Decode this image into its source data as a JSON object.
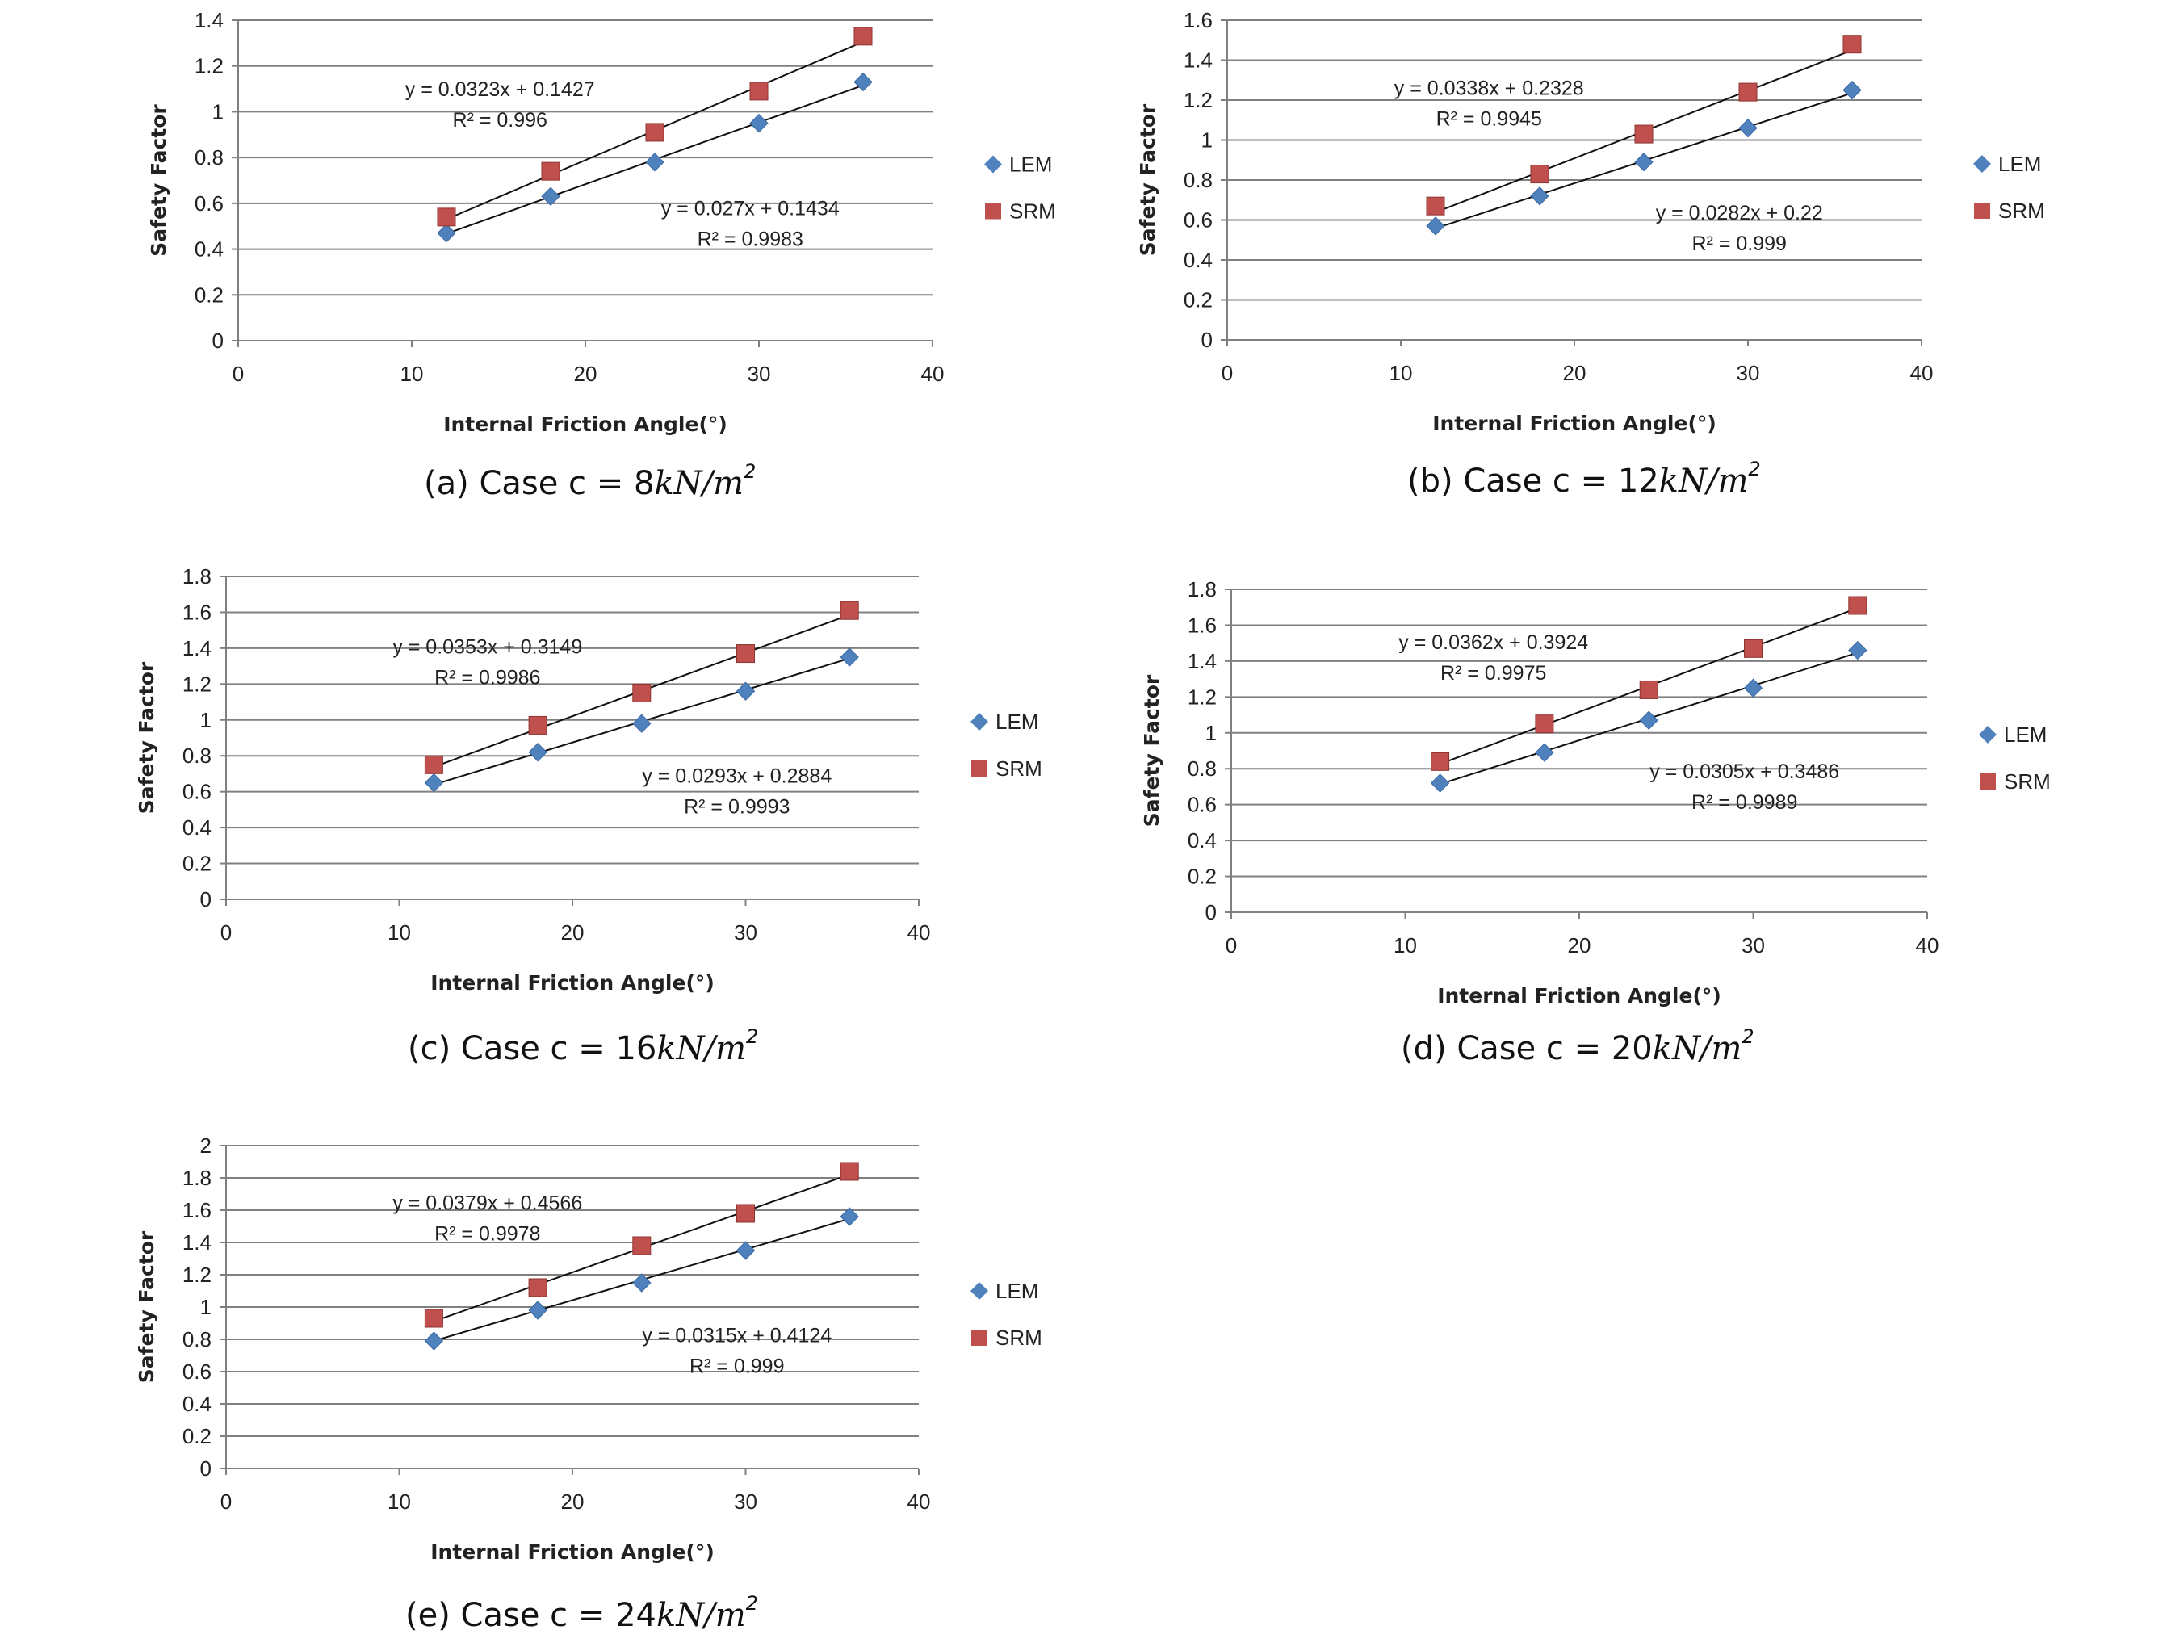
{
  "figure": {
    "legend": {
      "lem": "LEM",
      "srm": "SRM"
    },
    "colors": {
      "lem": "#4f81bd",
      "srm": "#c0504d",
      "grid": "#808080",
      "axis": "#808080",
      "fit": "#111111"
    }
  },
  "chart_data": [
    {
      "id": "a",
      "type": "scatter",
      "title": "",
      "caption_prefix": "(a) Case c = ",
      "caption_value": "8",
      "caption_unit": "kN/m",
      "caption_exp": "2",
      "xlabel": "Internal Friction Angle(°)",
      "ylabel": "Safety Factor",
      "xlim": [
        0,
        40
      ],
      "ylim": [
        0,
        1.4
      ],
      "xticks": [
        "0",
        "10",
        "20",
        "30",
        "40"
      ],
      "yticks": [
        "0",
        "0.2",
        "0.4",
        "0.6",
        "0.8",
        "1",
        "1.2",
        "1.4"
      ],
      "series": [
        {
          "name": "LEM",
          "x": [
            12,
            18,
            24,
            30,
            36
          ],
          "y": [
            0.47,
            0.63,
            0.78,
            0.95,
            1.13
          ],
          "fit": {
            "slope": 0.027,
            "intercept": 0.1434,
            "eq": "y = 0.027x + 0.1434",
            "r2": "R² = 0.9983"
          }
        },
        {
          "name": "SRM",
          "x": [
            12,
            18,
            24,
            30,
            36
          ],
          "y": [
            0.54,
            0.74,
            0.91,
            1.09,
            1.33
          ],
          "fit": {
            "slope": 0.0323,
            "intercept": 0.1427,
            "eq": "y = 0.0323x + 0.1427",
            "r2": "R² = 0.996"
          }
        }
      ]
    },
    {
      "id": "b",
      "type": "scatter",
      "title": "",
      "caption_prefix": "(b) Case c = ",
      "caption_value": "12",
      "caption_unit": "kN/m",
      "caption_exp": "2",
      "xlabel": "Internal Friction Angle(°)",
      "ylabel": "Safety Factor",
      "xlim": [
        0,
        40
      ],
      "ylim": [
        0,
        1.6
      ],
      "xticks": [
        "0",
        "10",
        "20",
        "30",
        "40"
      ],
      "yticks": [
        "0",
        "0.2",
        "0.4",
        "0.6",
        "0.8",
        "1",
        "1.2",
        "1.4",
        "1.6"
      ],
      "series": [
        {
          "name": "LEM",
          "x": [
            12,
            18,
            24,
            30,
            36
          ],
          "y": [
            0.57,
            0.72,
            0.89,
            1.06,
            1.25
          ],
          "fit": {
            "slope": 0.0282,
            "intercept": 0.22,
            "eq": "y = 0.0282x + 0.22",
            "r2": "R² = 0.999"
          }
        },
        {
          "name": "SRM",
          "x": [
            12,
            18,
            24,
            30,
            36
          ],
          "y": [
            0.67,
            0.83,
            1.03,
            1.24,
            1.48
          ],
          "fit": {
            "slope": 0.0338,
            "intercept": 0.2328,
            "eq": "y = 0.0338x + 0.2328",
            "r2": "R² = 0.9945"
          }
        }
      ]
    },
    {
      "id": "c",
      "type": "scatter",
      "title": "",
      "caption_prefix": "(c) Case c = ",
      "caption_value": "16",
      "caption_unit": "kN/m",
      "caption_exp": "2",
      "xlabel": "Internal Friction Angle(°)",
      "ylabel": "Safety Factor",
      "xlim": [
        0,
        40
      ],
      "ylim": [
        0,
        1.8
      ],
      "xticks": [
        "0",
        "10",
        "20",
        "30",
        "40"
      ],
      "yticks": [
        "0",
        "0.2",
        "0.4",
        "0.6",
        "0.8",
        "1",
        "1.2",
        "1.4",
        "1.6",
        "1.8"
      ],
      "series": [
        {
          "name": "LEM",
          "x": [
            12,
            18,
            24,
            30,
            36
          ],
          "y": [
            0.65,
            0.82,
            0.98,
            1.16,
            1.35
          ],
          "fit": {
            "slope": 0.0293,
            "intercept": 0.2884,
            "eq": "y = 0.0293x + 0.2884",
            "r2": "R² = 0.9993"
          }
        },
        {
          "name": "SRM",
          "x": [
            12,
            18,
            24,
            30,
            36
          ],
          "y": [
            0.75,
            0.97,
            1.15,
            1.37,
            1.61
          ],
          "fit": {
            "slope": 0.0353,
            "intercept": 0.3149,
            "eq": "y = 0.0353x + 0.3149",
            "r2": "R² = 0.9986"
          }
        }
      ]
    },
    {
      "id": "d",
      "type": "scatter",
      "title": "",
      "caption_prefix": "(d) Case c  = ",
      "caption_value": "20",
      "caption_unit": "kN/m",
      "caption_exp": "2",
      "xlabel": "Internal Friction Angle(°)",
      "ylabel": "Safety Factor",
      "xlim": [
        0,
        40
      ],
      "ylim": [
        0,
        1.8
      ],
      "xticks": [
        "0",
        "10",
        "20",
        "30",
        "40"
      ],
      "yticks": [
        "0",
        "0.2",
        "0.4",
        "0.6",
        "0.8",
        "1",
        "1.2",
        "1.4",
        "1.6",
        "1.8"
      ],
      "series": [
        {
          "name": "LEM",
          "x": [
            12,
            18,
            24,
            30,
            36
          ],
          "y": [
            0.72,
            0.89,
            1.07,
            1.25,
            1.46
          ],
          "fit": {
            "slope": 0.0305,
            "intercept": 0.3486,
            "eq": "y = 0.0305x + 0.3486",
            "r2": "R² = 0.9989"
          }
        },
        {
          "name": "SRM",
          "x": [
            12,
            18,
            24,
            30,
            36
          ],
          "y": [
            0.84,
            1.05,
            1.24,
            1.47,
            1.71
          ],
          "fit": {
            "slope": 0.0362,
            "intercept": 0.3924,
            "eq": "y = 0.0362x + 0.3924",
            "r2": "R² = 0.9975"
          }
        }
      ]
    },
    {
      "id": "e",
      "type": "scatter",
      "title": "",
      "caption_prefix": "(e) Case c = ",
      "caption_value": "24",
      "caption_unit": "kN/m",
      "caption_exp": "2",
      "xlabel": "Internal Friction Angle(°)",
      "ylabel": "Safety Factor",
      "xlim": [
        0,
        40
      ],
      "ylim": [
        0,
        2
      ],
      "xticks": [
        "0",
        "10",
        "20",
        "30",
        "40"
      ],
      "yticks": [
        "0",
        "0.2",
        "0.4",
        "0.6",
        "0.8",
        "1",
        "1.2",
        "1.4",
        "1.6",
        "1.8",
        "2"
      ],
      "series": [
        {
          "name": "LEM",
          "x": [
            12,
            18,
            24,
            30,
            36
          ],
          "y": [
            0.79,
            0.98,
            1.15,
            1.35,
            1.56
          ],
          "fit": {
            "slope": 0.0315,
            "intercept": 0.4124,
            "eq": "y = 0.0315x + 0.4124",
            "r2": "R² = 0.999"
          }
        },
        {
          "name": "SRM",
          "x": [
            12,
            18,
            24,
            30,
            36
          ],
          "y": [
            0.93,
            1.12,
            1.38,
            1.58,
            1.84
          ],
          "fit": {
            "slope": 0.0379,
            "intercept": 0.4566,
            "eq": "y = 0.0379x + 0.4566",
            "r2": "R² = 0.9978"
          }
        }
      ]
    }
  ]
}
